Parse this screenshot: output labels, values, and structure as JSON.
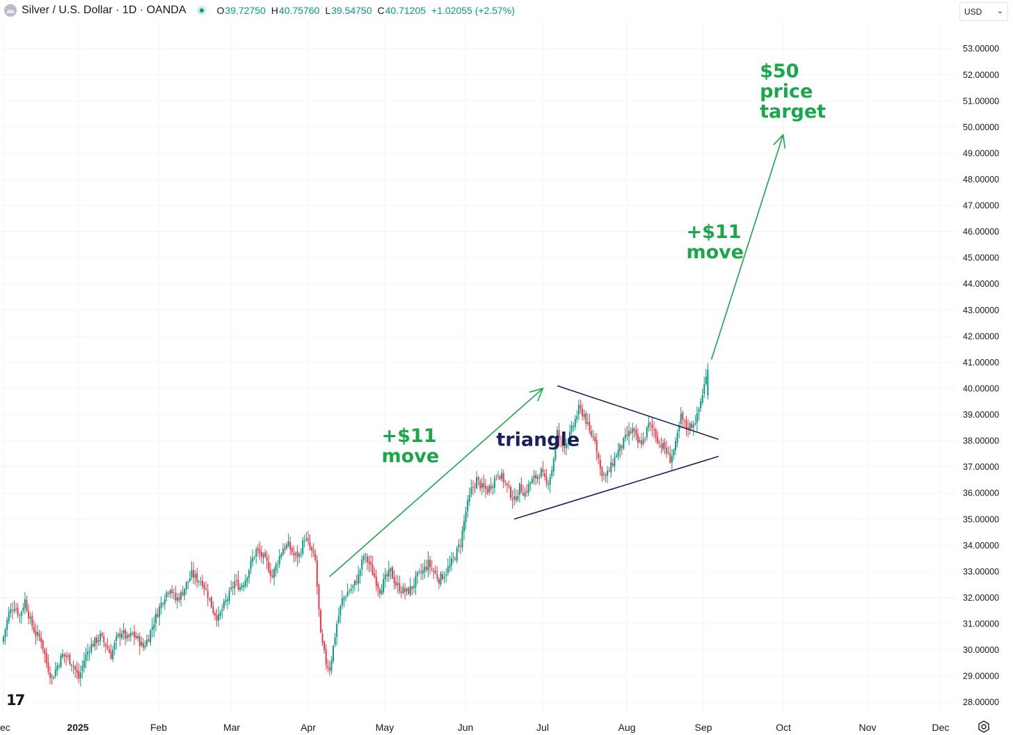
{
  "header": {
    "symbol_title": "Silver / U.S. Dollar · 1D · OANDA",
    "ohlc": [
      {
        "key": "O",
        "value": "39.72750"
      },
      {
        "key": "H",
        "value": "40.75760"
      },
      {
        "key": "L",
        "value": "39.54750"
      },
      {
        "key": "C",
        "value": "40.71205"
      }
    ],
    "change": "+1.02055 (+2.57%)",
    "currency": "USD",
    "up_color": "#089981",
    "down_color": "#f23645"
  },
  "chart_data": {
    "type": "candlestick",
    "y_ticks": [
      "53.00000",
      "52.00000",
      "51.00000",
      "50.00000",
      "49.00000",
      "48.00000",
      "47.00000",
      "46.00000",
      "45.00000",
      "44.00000",
      "43.00000",
      "42.00000",
      "41.00000",
      "40.00000",
      "39.00000",
      "38.00000",
      "37.00000",
      "36.00000",
      "35.00000",
      "34.00000",
      "33.00000",
      "32.00000",
      "31.00000",
      "30.00000",
      "29.00000",
      "28.00000"
    ],
    "x_ticks": [
      "ec",
      "2025",
      "Feb",
      "Mar",
      "Apr",
      "May",
      "Jun",
      "Jul",
      "Aug",
      "Sep",
      "Oct",
      "Nov",
      "Dec"
    ],
    "grid": true,
    "close_path": [
      [
        0,
        30.5
      ],
      [
        3,
        31.4
      ],
      [
        6,
        31.7
      ],
      [
        9,
        31.3
      ],
      [
        12,
        31.9
      ],
      [
        15,
        31.1
      ],
      [
        18,
        30.6
      ],
      [
        21,
        30.4
      ],
      [
        24,
        29.5
      ],
      [
        27,
        28.9
      ],
      [
        30,
        29.4
      ],
      [
        33,
        29.8
      ],
      [
        36,
        29.7
      ],
      [
        39,
        29.4
      ],
      [
        42,
        28.9
      ],
      [
        45,
        29.6
      ],
      [
        48,
        30.1
      ],
      [
        51,
        30.3
      ],
      [
        54,
        30.5
      ],
      [
        57,
        30.2
      ],
      [
        60,
        29.8
      ],
      [
        63,
        30.4
      ],
      [
        66,
        30.7
      ],
      [
        69,
        30.4
      ],
      [
        72,
        30.6
      ],
      [
        75,
        30.4
      ],
      [
        78,
        30.1
      ],
      [
        81,
        30.5
      ],
      [
        84,
        31.1
      ],
      [
        87,
        31.6
      ],
      [
        90,
        32.1
      ],
      [
        93,
        32.4
      ],
      [
        96,
        31.9
      ],
      [
        99,
        32.1
      ],
      [
        102,
        32.5
      ],
      [
        105,
        32.9
      ],
      [
        108,
        32.7
      ],
      [
        111,
        32.6
      ],
      [
        114,
        32.1
      ],
      [
        117,
        31.5
      ],
      [
        120,
        31.2
      ],
      [
        123,
        31.7
      ],
      [
        126,
        32.1
      ],
      [
        129,
        32.6
      ],
      [
        132,
        32.4
      ],
      [
        135,
        32.7
      ],
      [
        138,
        33.3
      ],
      [
        141,
        33.8
      ],
      [
        144,
        33.6
      ],
      [
        147,
        33.3
      ],
      [
        150,
        32.8
      ],
      [
        153,
        33.4
      ],
      [
        156,
        33.9
      ],
      [
        159,
        34.0
      ],
      [
        162,
        33.6
      ],
      [
        165,
        33.6
      ],
      [
        168,
        34.3
      ],
      [
        171,
        33.9
      ],
      [
        174,
        33.4
      ],
      [
        177,
        30.5
      ],
      [
        180,
        29.5
      ],
      [
        182,
        29.3
      ],
      [
        184,
        30.1
      ],
      [
        186,
        31.0
      ],
      [
        189,
        31.9
      ],
      [
        192,
        32.2
      ],
      [
        195,
        32.4
      ],
      [
        198,
        32.8
      ],
      [
        201,
        33.6
      ],
      [
        204,
        33.3
      ],
      [
        207,
        32.8
      ],
      [
        210,
        32.3
      ],
      [
        213,
        32.7
      ],
      [
        216,
        33.0
      ],
      [
        219,
        32.5
      ],
      [
        222,
        32.3
      ],
      [
        225,
        32.2
      ],
      [
        228,
        32.4
      ],
      [
        231,
        32.8
      ],
      [
        234,
        33.0
      ],
      [
        237,
        33.3
      ],
      [
        240,
        33.0
      ],
      [
        243,
        32.7
      ],
      [
        246,
        32.9
      ],
      [
        249,
        33.2
      ],
      [
        252,
        33.6
      ],
      [
        255,
        34.1
      ],
      [
        258,
        35.3
      ],
      [
        261,
        36.1
      ],
      [
        264,
        36.5
      ],
      [
        267,
        36.2
      ],
      [
        270,
        36.1
      ],
      [
        273,
        36.4
      ],
      [
        276,
        36.8
      ],
      [
        279,
        36.5
      ],
      [
        282,
        36.1
      ],
      [
        285,
        35.7
      ],
      [
        288,
        36.2
      ],
      [
        291,
        36.0
      ],
      [
        294,
        36.4
      ],
      [
        297,
        36.6
      ],
      [
        300,
        36.8
      ],
      [
        303,
        36.3
      ],
      [
        306,
        36.9
      ],
      [
        309,
        38.3
      ],
      [
        312,
        37.8
      ],
      [
        315,
        38.0
      ],
      [
        318,
        38.6
      ],
      [
        321,
        39.2
      ],
      [
        324,
        39.0
      ],
      [
        327,
        38.3
      ],
      [
        330,
        38.1
      ],
      [
        333,
        36.9
      ],
      [
        336,
        36.6
      ],
      [
        339,
        37.0
      ],
      [
        342,
        37.5
      ],
      [
        345,
        37.8
      ],
      [
        348,
        38.2
      ],
      [
        351,
        38.4
      ],
      [
        354,
        37.9
      ],
      [
        357,
        38.0
      ],
      [
        360,
        38.6
      ],
      [
        363,
        38.4
      ],
      [
        366,
        37.9
      ],
      [
        369,
        37.7
      ],
      [
        372,
        37.3
      ],
      [
        375,
        37.8
      ],
      [
        378,
        38.9
      ],
      [
        381,
        38.5
      ],
      [
        384,
        38.6
      ],
      [
        387,
        38.9
      ],
      [
        390,
        39.8
      ],
      [
        393,
        40.71
      ]
    ],
    "annotations": [
      {
        "type": "arrow",
        "x1": 182,
        "y1": 32.8,
        "x2": 301,
        "y2": 40.0,
        "color": "#1aa64a"
      },
      {
        "type": "trendline",
        "x1": 309,
        "y1": 40.1,
        "x2": 399,
        "y2": 38.05,
        "color": "#1a1f5e"
      },
      {
        "type": "trendline",
        "x1": 285,
        "y1": 35.0,
        "x2": 399,
        "y2": 37.4,
        "color": "#1a1f5e"
      },
      {
        "type": "arrow",
        "x1": 395,
        "y1": 41.1,
        "x2": 435,
        "y2": 49.7,
        "color": "#1aa64a"
      }
    ],
    "labels": [
      {
        "lines": [
          "+$11",
          "move"
        ],
        "x": 211,
        "y": 37.95,
        "color": "#1aa64a"
      },
      {
        "lines": [
          "triangle"
        ],
        "x": 275,
        "y": 37.8,
        "color": "#1a1f5e"
      },
      {
        "lines": [
          "+$11",
          "move"
        ],
        "x": 381,
        "y": 45.75,
        "color": "#1aa64a"
      },
      {
        "lines": [
          "$50",
          "price",
          "target"
        ],
        "x": 422,
        "y": 51.9,
        "color": "#1aa64a"
      }
    ]
  }
}
